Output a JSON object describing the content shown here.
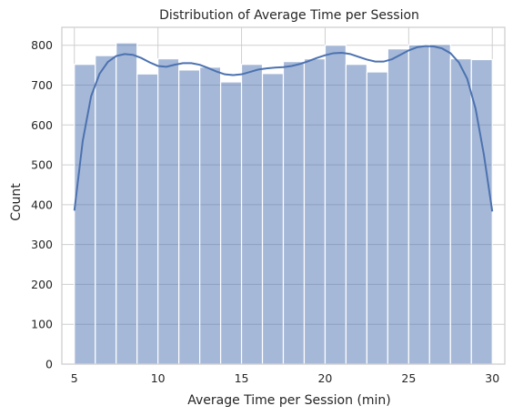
{
  "chart_data": {
    "type": "bar",
    "title": "Distribution of Average Time per Session",
    "xlabel": "Average Time per Session (min)",
    "ylabel": "Count",
    "xlim": [
      4.25,
      30.75
    ],
    "ylim": [
      0,
      845
    ],
    "xticks": [
      5,
      10,
      15,
      20,
      25,
      30
    ],
    "yticks": [
      0,
      100,
      200,
      300,
      400,
      500,
      600,
      700,
      800
    ],
    "grid": true,
    "color": "#4c72b0",
    "bins": [
      {
        "start": 5.0,
        "end": 6.25,
        "count": 752
      },
      {
        "start": 6.25,
        "end": 7.5,
        "count": 774
      },
      {
        "start": 7.5,
        "end": 8.75,
        "count": 806
      },
      {
        "start": 8.75,
        "end": 10.0,
        "count": 728
      },
      {
        "start": 10.0,
        "end": 11.25,
        "count": 766
      },
      {
        "start": 11.25,
        "end": 12.5,
        "count": 738
      },
      {
        "start": 12.5,
        "end": 13.75,
        "count": 745
      },
      {
        "start": 13.75,
        "end": 15.0,
        "count": 708
      },
      {
        "start": 15.0,
        "end": 16.25,
        "count": 752
      },
      {
        "start": 16.25,
        "end": 17.5,
        "count": 729
      },
      {
        "start": 17.5,
        "end": 18.75,
        "count": 759
      },
      {
        "start": 18.75,
        "end": 20.0,
        "count": 766
      },
      {
        "start": 20.0,
        "end": 21.25,
        "count": 800
      },
      {
        "start": 21.25,
        "end": 22.5,
        "count": 752
      },
      {
        "start": 22.5,
        "end": 23.75,
        "count": 733
      },
      {
        "start": 23.75,
        "end": 25.0,
        "count": 791
      },
      {
        "start": 25.0,
        "end": 26.25,
        "count": 801
      },
      {
        "start": 26.25,
        "end": 27.5,
        "count": 802
      },
      {
        "start": 27.5,
        "end": 28.75,
        "count": 766
      },
      {
        "start": 28.75,
        "end": 30.0,
        "count": 764
      }
    ],
    "kde": {
      "x": [
        5,
        5.5,
        6,
        6.5,
        7,
        7.5,
        8,
        8.5,
        9,
        9.5,
        10,
        10.5,
        11,
        11.5,
        12,
        12.5,
        13,
        13.5,
        14,
        14.5,
        15,
        15.5,
        16,
        16.5,
        17,
        17.5,
        18,
        18.5,
        19,
        19.5,
        20,
        20.5,
        21,
        21.5,
        22,
        22.5,
        23,
        23.5,
        24,
        24.5,
        25,
        25.5,
        26,
        26.5,
        27,
        27.5,
        28,
        28.5,
        29,
        29.5,
        30
      ],
      "y": [
        385,
        560,
        672,
        728,
        758,
        773,
        778,
        776,
        768,
        757,
        748,
        746,
        751,
        755,
        755,
        751,
        743,
        734,
        727,
        725,
        727,
        733,
        739,
        742,
        744,
        745,
        748,
        753,
        760,
        768,
        775,
        780,
        781,
        778,
        771,
        764,
        759,
        759,
        765,
        776,
        787,
        795,
        798,
        797,
        792,
        780,
        757,
        716,
        641,
        525,
        383
      ]
    }
  }
}
